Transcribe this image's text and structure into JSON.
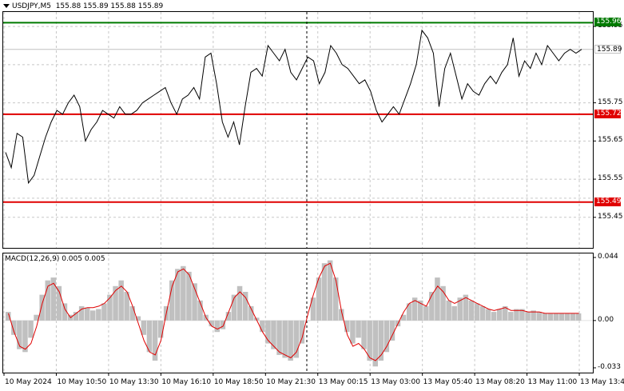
{
  "header": {
    "symbol": "USDJPY,M5",
    "ohlc": "155.88 155.89 155.88 155.89"
  },
  "macd_header": "MACD(12,26,9) 0.005 0.005",
  "colors": {
    "price_line": "#000000",
    "resistance": "#007a00",
    "support": "#e00000",
    "current": "#c0c0c0",
    "macd_hist": "#c0c0c0",
    "macd_signal": "#e00000",
    "grid": "#c8c8c8"
  },
  "chart_data": [
    {
      "type": "line",
      "title": "USDJPY,M5",
      "ylim": [
        155.37,
        155.99
      ],
      "y_ticks": [
        "155.95",
        "155.75",
        "155.65",
        "155.55",
        "155.45"
      ],
      "x_ticks": [
        "10 May 2024",
        "10 May 10:50",
        "10 May 13:30",
        "10 May 16:10",
        "10 May 18:50",
        "10 May 21:30",
        "13 May 00:15",
        "13 May 03:00",
        "13 May 05:40",
        "13 May 08:20",
        "13 May 11:00",
        "13 May 13:40"
      ],
      "levels": [
        {
          "value": "155.96",
          "kind": "resistance"
        },
        {
          "value": "155.89",
          "kind": "current"
        },
        {
          "value": "155.72",
          "kind": "support"
        },
        {
          "value": "155.49",
          "kind": "support"
        }
      ],
      "series": [
        {
          "values": [
            155.62,
            155.58,
            155.67,
            155.66,
            155.54,
            155.56,
            155.61,
            155.66,
            155.7,
            155.73,
            155.72,
            155.75,
            155.77,
            155.74,
            155.65,
            155.68,
            155.7,
            155.73,
            155.72,
            155.71,
            155.74,
            155.72,
            155.72,
            155.73,
            155.75,
            155.76,
            155.77,
            155.78,
            155.79,
            155.75,
            155.72,
            155.76,
            155.77,
            155.79,
            155.76,
            155.87,
            155.88,
            155.8,
            155.7,
            155.66,
            155.7,
            155.64,
            155.74,
            155.83,
            155.84,
            155.82,
            155.9,
            155.88,
            155.86,
            155.89,
            155.83,
            155.81,
            155.84,
            155.87,
            155.86,
            155.8,
            155.83,
            155.9,
            155.88,
            155.85,
            155.84,
            155.82,
            155.8,
            155.81,
            155.78,
            155.73,
            155.7,
            155.72,
            155.74,
            155.72,
            155.76,
            155.8,
            155.85,
            155.94,
            155.92,
            155.88,
            155.74,
            155.84,
            155.88,
            155.82,
            155.76,
            155.8,
            155.78,
            155.77,
            155.8,
            155.82,
            155.8,
            155.83,
            155.85,
            155.92,
            155.82,
            155.86,
            155.84,
            155.88,
            155.85,
            155.9,
            155.88,
            155.86,
            155.88,
            155.89,
            155.88,
            155.89
          ]
        }
      ]
    },
    {
      "type": "bar",
      "title": "MACD(12,26,9)",
      "ylim": [
        -0.033,
        0.044
      ],
      "y_ticks": [
        "0.044",
        "0.00",
        "-0.033"
      ],
      "series": [
        {
          "name": "MACD",
          "kind": "histogram",
          "values": [
            0.006,
            -0.01,
            -0.02,
            -0.022,
            -0.012,
            0.004,
            0.018,
            0.028,
            0.03,
            0.024,
            0.012,
            0.004,
            0.006,
            0.01,
            0.009,
            0.007,
            0.008,
            0.012,
            0.018,
            0.024,
            0.028,
            0.02,
            0.01,
            0.003,
            -0.01,
            -0.022,
            -0.028,
            -0.012,
            0.01,
            0.028,
            0.036,
            0.038,
            0.034,
            0.026,
            0.014,
            0.004,
            -0.004,
            -0.008,
            -0.006,
            0.006,
            0.018,
            0.024,
            0.02,
            0.01,
            0.002,
            -0.008,
            -0.016,
            -0.02,
            -0.024,
            -0.026,
            -0.028,
            -0.026,
            -0.016,
            0.0,
            0.016,
            0.03,
            0.04,
            0.042,
            0.03,
            0.008,
            -0.008,
            -0.016,
            -0.012,
            -0.02,
            -0.028,
            -0.032,
            -0.028,
            -0.022,
            -0.014,
            -0.004,
            0.004,
            0.012,
            0.016,
            0.014,
            0.01,
            0.02,
            0.03,
            0.024,
            0.014,
            0.01,
            0.016,
            0.018,
            0.014,
            0.012,
            0.01,
            0.008,
            0.006,
            0.008,
            0.01,
            0.006,
            0.008,
            0.008,
            0.006,
            0.007,
            0.006,
            0.005,
            0.005,
            0.005,
            0.005,
            0.005,
            0.005,
            0.005
          ]
        },
        {
          "name": "Signal",
          "kind": "line",
          "values": [
            0.005,
            -0.008,
            -0.018,
            -0.02,
            -0.016,
            -0.004,
            0.012,
            0.024,
            0.026,
            0.02,
            0.008,
            0.002,
            0.005,
            0.008,
            0.009,
            0.009,
            0.01,
            0.012,
            0.016,
            0.021,
            0.024,
            0.02,
            0.01,
            -0.002,
            -0.014,
            -0.022,
            -0.024,
            -0.014,
            0.006,
            0.024,
            0.034,
            0.036,
            0.032,
            0.022,
            0.012,
            0.002,
            -0.004,
            -0.006,
            -0.004,
            0.006,
            0.016,
            0.02,
            0.016,
            0.008,
            0.0,
            -0.008,
            -0.014,
            -0.018,
            -0.022,
            -0.024,
            -0.026,
            -0.022,
            -0.012,
            0.004,
            0.018,
            0.03,
            0.038,
            0.04,
            0.028,
            0.006,
            -0.01,
            -0.018,
            -0.016,
            -0.02,
            -0.026,
            -0.028,
            -0.024,
            -0.018,
            -0.01,
            -0.002,
            0.006,
            0.012,
            0.014,
            0.012,
            0.01,
            0.018,
            0.024,
            0.02,
            0.014,
            0.012,
            0.014,
            0.016,
            0.014,
            0.012,
            0.01,
            0.008,
            0.007,
            0.008,
            0.009,
            0.007,
            0.007,
            0.007,
            0.006,
            0.006,
            0.006,
            0.005,
            0.005,
            0.005,
            0.005,
            0.005,
            0.005,
            0.005
          ]
        }
      ]
    }
  ]
}
